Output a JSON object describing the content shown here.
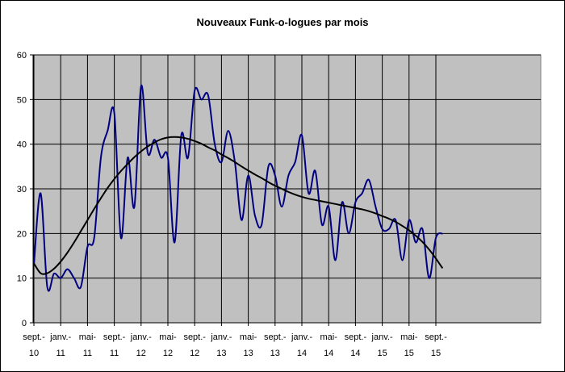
{
  "chart_data": {
    "type": "line",
    "title": "Nouveaux Funk-o-logues par mois",
    "xlabel": "",
    "ylabel": "",
    "ylim": [
      0,
      60
    ],
    "y_ticks": [
      "0",
      "10",
      "20",
      "30",
      "40",
      "50",
      "60"
    ],
    "x_tick_labels": [
      [
        "sept.-",
        "10"
      ],
      [
        "janv.-",
        "11"
      ],
      [
        "mai-",
        "11"
      ],
      [
        "sept.-",
        "11"
      ],
      [
        "janv.-",
        "12"
      ],
      [
        "mai-",
        "12"
      ],
      [
        "sept.-",
        "12"
      ],
      [
        "janv.-",
        "13"
      ],
      [
        "mai-",
        "13"
      ],
      [
        "sept.-",
        "13"
      ],
      [
        "janv.-",
        "14"
      ],
      [
        "mai-",
        "14"
      ],
      [
        "sept.-",
        "14"
      ],
      [
        "janv.-",
        "15"
      ],
      [
        "mai-",
        "15"
      ],
      [
        "sept.-",
        "15"
      ]
    ],
    "x": [
      "2010-09",
      "2010-10",
      "2010-11",
      "2010-12",
      "2011-01",
      "2011-02",
      "2011-03",
      "2011-04",
      "2011-05",
      "2011-06",
      "2011-07",
      "2011-08",
      "2011-09",
      "2011-10",
      "2011-11",
      "2011-12",
      "2012-01",
      "2012-02",
      "2012-03",
      "2012-04",
      "2012-05",
      "2012-06",
      "2012-07",
      "2012-08",
      "2012-09",
      "2012-10",
      "2012-11",
      "2012-12",
      "2013-01",
      "2013-02",
      "2013-03",
      "2013-04",
      "2013-05",
      "2013-06",
      "2013-07",
      "2013-08",
      "2013-09",
      "2013-10",
      "2013-11",
      "2013-12",
      "2014-01",
      "2014-02",
      "2014-03",
      "2014-04",
      "2014-05",
      "2014-06",
      "2014-07",
      "2014-08",
      "2014-09",
      "2014-10",
      "2014-11",
      "2014-12",
      "2015-01",
      "2015-02",
      "2015-03",
      "2015-04",
      "2015-05",
      "2015-06",
      "2015-07",
      "2015-08",
      "2015-09",
      "2015-10"
    ],
    "series": [
      {
        "values": [
          13,
          29,
          8,
          11,
          10,
          12,
          10,
          8,
          17,
          19,
          37,
          43,
          47,
          19,
          37,
          26,
          53,
          38,
          41,
          37,
          37,
          18,
          42,
          37,
          52,
          50,
          51,
          40,
          36,
          43,
          36,
          23,
          33,
          24,
          22,
          35,
          33,
          26,
          33,
          36,
          42,
          29,
          34,
          22,
          26,
          14,
          27,
          20,
          27,
          29,
          32,
          26,
          21,
          21,
          23,
          14,
          23,
          18,
          21,
          10,
          19,
          20
        ],
        "color": "#000080"
      },
      {
        "values": [
          13.3,
          11.1,
          11.1,
          12.1,
          13.7,
          15.7,
          18,
          20.5,
          23,
          25.5,
          27.9,
          30.2,
          32.2,
          34,
          35.6,
          37.1,
          38.4,
          39.5,
          40.4,
          41.1,
          41.5,
          41.6,
          41.5,
          41.2,
          40.7,
          40.1,
          39.3,
          38.6,
          37.7,
          36.9,
          36,
          35,
          34.1,
          33.2,
          32.4,
          31.5,
          30.7,
          30,
          29.3,
          28.7,
          28.2,
          27.8,
          27.5,
          27.2,
          26.9,
          26.6,
          26.3,
          26,
          25.7,
          25.4,
          25,
          24.5,
          23.9,
          23.3,
          22.6,
          21.7,
          20.7,
          19.5,
          18.1,
          16.4,
          14.4,
          12.2
        ],
        "color": "#000000"
      }
    ],
    "grid": true,
    "legend": "none",
    "plot_background": "#c0c0c0",
    "gridline_color": "#000000"
  }
}
